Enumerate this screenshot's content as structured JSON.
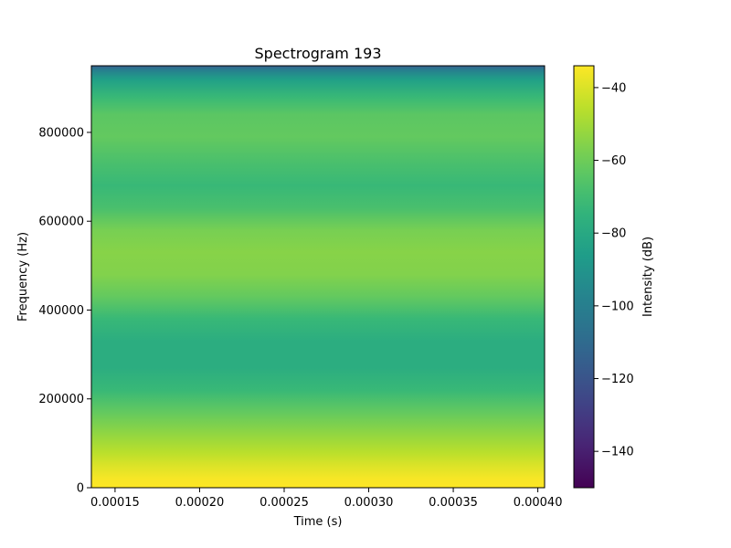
{
  "chart_data": {
    "type": "heatmap",
    "title": "Spectrogram 193",
    "xlabel": "Time (s)",
    "ylabel": "Frequency (Hz)",
    "colorbar_label": "Intensity (dB)",
    "colormap": "viridis",
    "xlim": [
      0.000136,
      0.000404
    ],
    "ylim": [
      0,
      950000
    ],
    "clim": [
      -150,
      -34
    ],
    "x_ticks": [
      {
        "value": 0.00015,
        "label": "0.00015"
      },
      {
        "value": 0.0002,
        "label": "0.00020"
      },
      {
        "value": 0.00025,
        "label": "0.00025"
      },
      {
        "value": 0.0003,
        "label": "0.00030"
      },
      {
        "value": 0.00035,
        "label": "0.00035"
      },
      {
        "value": 0.0004,
        "label": "0.00040"
      }
    ],
    "y_ticks": [
      {
        "value": 0,
        "label": "0"
      },
      {
        "value": 200000,
        "label": "200000"
      },
      {
        "value": 400000,
        "label": "400000"
      },
      {
        "value": 600000,
        "label": "600000"
      },
      {
        "value": 800000,
        "label": "800000"
      }
    ],
    "colorbar_ticks": [
      {
        "value": -40,
        "label": "−40"
      },
      {
        "value": -60,
        "label": "−60"
      },
      {
        "value": -80,
        "label": "−80"
      },
      {
        "value": -100,
        "label": "−100"
      },
      {
        "value": -120,
        "label": "−120"
      },
      {
        "value": -140,
        "label": "−140"
      }
    ],
    "frequency_profile": [
      {
        "freq": 0,
        "db": -34
      },
      {
        "freq": 20000,
        "db": -35
      },
      {
        "freq": 50000,
        "db": -40
      },
      {
        "freq": 80000,
        "db": -46
      },
      {
        "freq": 120000,
        "db": -53
      },
      {
        "freq": 170000,
        "db": -62
      },
      {
        "freq": 220000,
        "db": -72
      },
      {
        "freq": 270000,
        "db": -78
      },
      {
        "freq": 330000,
        "db": -78
      },
      {
        "freq": 380000,
        "db": -72
      },
      {
        "freq": 430000,
        "db": -62
      },
      {
        "freq": 480000,
        "db": -56
      },
      {
        "freq": 530000,
        "db": -55
      },
      {
        "freq": 580000,
        "db": -58
      },
      {
        "freq": 630000,
        "db": -68
      },
      {
        "freq": 680000,
        "db": -72
      },
      {
        "freq": 730000,
        "db": -68
      },
      {
        "freq": 790000,
        "db": -62
      },
      {
        "freq": 840000,
        "db": -64
      },
      {
        "freq": 880000,
        "db": -72
      },
      {
        "freq": 920000,
        "db": -85
      },
      {
        "freq": 940000,
        "db": -100
      },
      {
        "freq": 950000,
        "db": -115
      }
    ]
  }
}
